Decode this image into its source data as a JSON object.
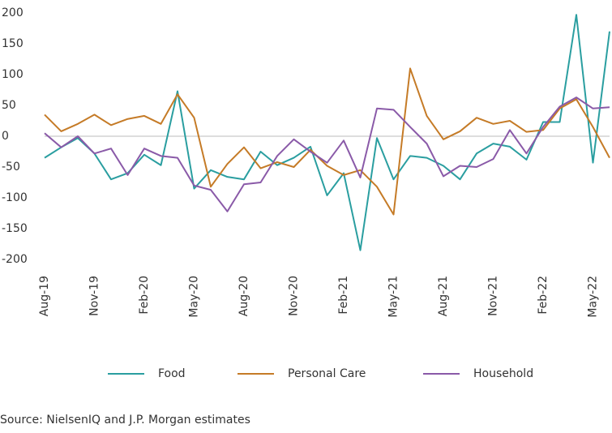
{
  "chart_data": {
    "type": "line",
    "categories": [
      "Aug-19",
      null,
      null,
      "Nov-19",
      null,
      null,
      "Feb-20",
      null,
      null,
      "May-20",
      null,
      null,
      "Aug-20",
      null,
      null,
      "Nov-20",
      null,
      null,
      "Feb-21",
      null,
      null,
      "May-21",
      null,
      null,
      "Aug-21",
      null,
      null,
      "Nov-21",
      null,
      null,
      "Feb-22",
      null,
      null,
      "May-22",
      null
    ],
    "series": [
      {
        "name": "Food",
        "color": "#2a9ea0",
        "values": [
          -35,
          -18,
          -3,
          -28,
          -70,
          -60,
          -30,
          -47,
          73,
          -85,
          -55,
          -66,
          -70,
          -25,
          -47,
          -35,
          -17,
          -96,
          -60,
          -185,
          -3,
          -70,
          -32,
          -35,
          -48,
          -70,
          -28,
          -12,
          -17,
          -38,
          23,
          23,
          197,
          -43,
          170
        ]
      },
      {
        "name": "Personal Care",
        "color": "#c57b27",
        "values": [
          35,
          8,
          20,
          35,
          18,
          28,
          33,
          20,
          68,
          30,
          -82,
          -45,
          -18,
          -52,
          -42,
          -50,
          -22,
          -48,
          -63,
          -55,
          -82,
          -127,
          110,
          33,
          -5,
          8,
          30,
          20,
          25,
          7,
          10,
          45,
          60,
          15,
          -35
        ]
      },
      {
        "name": "Household",
        "color": "#8a5aa8",
        "values": [
          5,
          -18,
          0,
          -28,
          -20,
          -63,
          -20,
          -32,
          -35,
          -80,
          -87,
          -122,
          -78,
          -75,
          -32,
          -5,
          -25,
          -43,
          -7,
          -67,
          45,
          43,
          15,
          -12,
          -65,
          -48,
          -50,
          -37,
          10,
          -28,
          15,
          48,
          63,
          45,
          47
        ]
      }
    ],
    "ylim": [
      -200,
      200
    ],
    "yticks": [
      -200,
      -150,
      -100,
      -50,
      0,
      50,
      100,
      150,
      200
    ],
    "source": "Source: NielsenIQ and J.P. Morgan estimates"
  }
}
